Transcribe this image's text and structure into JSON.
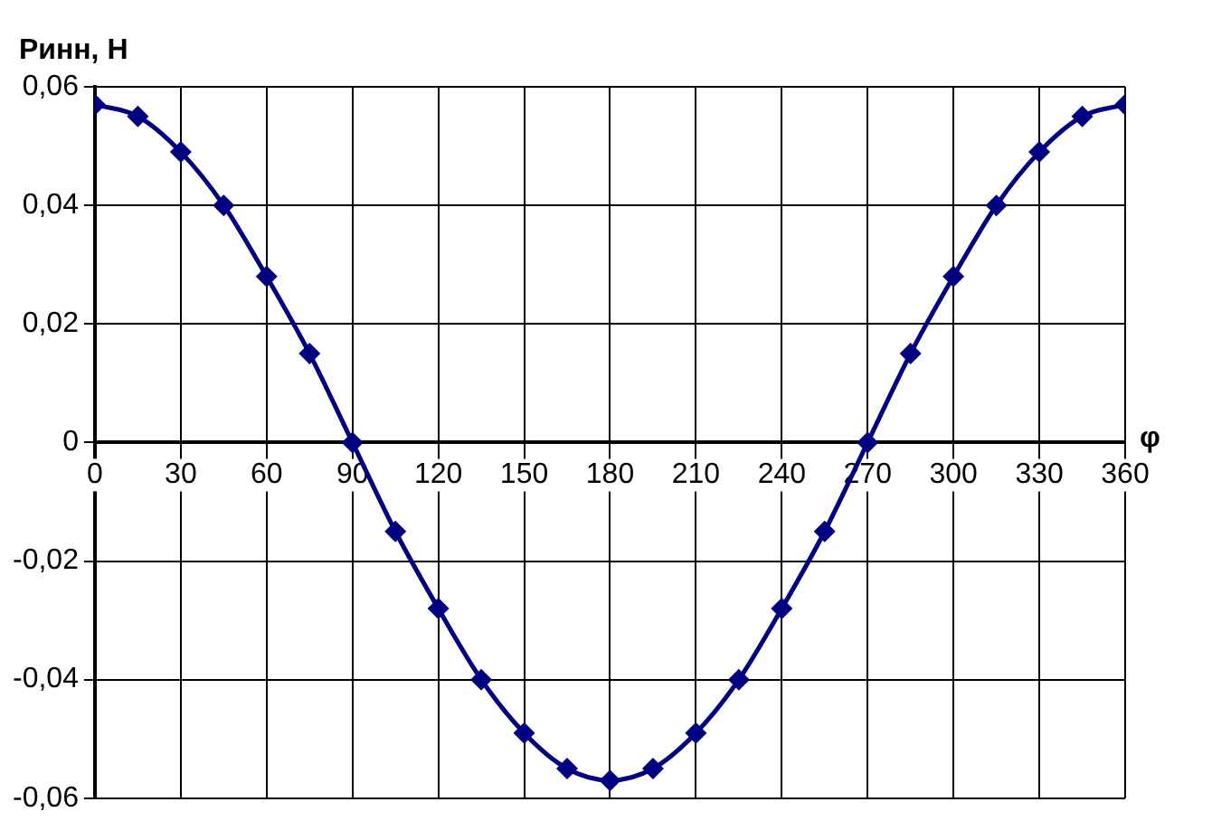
{
  "chart_data": {
    "type": "line",
    "xlabel": "φ",
    "ylabel": "Ринн, Н",
    "x": [
      0,
      15,
      30,
      45,
      60,
      75,
      90,
      105,
      120,
      135,
      150,
      165,
      180,
      195,
      210,
      225,
      240,
      255,
      270,
      285,
      300,
      315,
      330,
      345,
      360
    ],
    "series": [
      {
        "color": "#000080",
        "values": [
          0.057,
          0.055,
          0.049,
          0.04,
          0.028,
          0.015,
          0,
          -0.015,
          -0.028,
          -0.04,
          -0.049,
          -0.055,
          -0.057,
          -0.055,
          -0.049,
          -0.04,
          -0.028,
          -0.015,
          0,
          0.015,
          0.028,
          0.04,
          0.049,
          0.055,
          0.057
        ]
      }
    ],
    "xlim": [
      0,
      360
    ],
    "xticks": [
      0,
      30,
      60,
      90,
      120,
      150,
      180,
      210,
      240,
      270,
      300,
      330,
      360
    ],
    "ylim": [
      -0.06,
      0.06
    ],
    "yticks": [
      {
        "value": -0.06,
        "label": "-0,06"
      },
      {
        "value": -0.04,
        "label": "-0,04"
      },
      {
        "value": -0.02,
        "label": "-0,02"
      },
      0,
      {
        "value": 0.02,
        "label": "0,02"
      },
      {
        "value": 0.04,
        "label": "0,04"
      },
      {
        "value": 0.06,
        "label": "0,06"
      }
    ],
    "grid": true,
    "legend": false,
    "marker": "diamond",
    "line_style": "solid"
  }
}
